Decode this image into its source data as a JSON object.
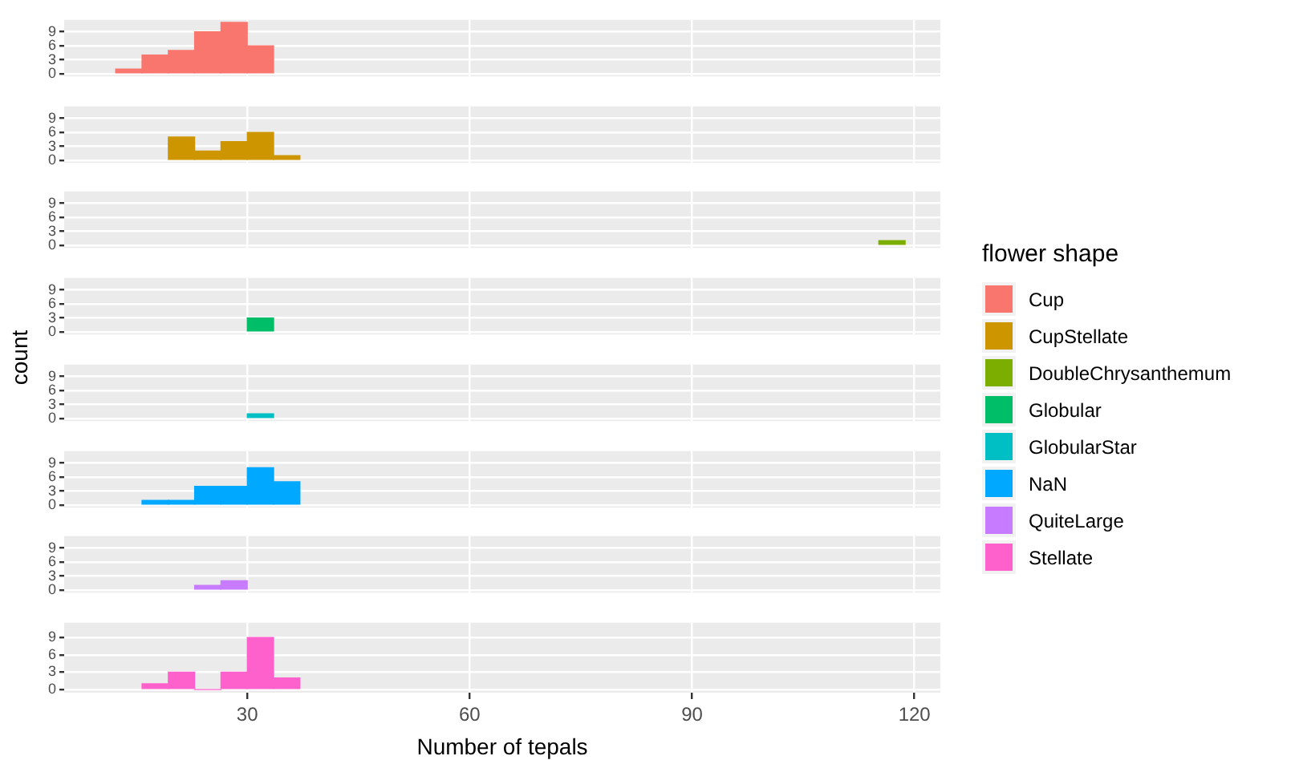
{
  "chart_data": [
    {
      "type": "histogram",
      "legend_title": "flower shape",
      "legend": "right",
      "bins": [
        12.25,
        15.8,
        19.35,
        22.9,
        26.45,
        30,
        33.55
      ],
      "series": [
        {
          "name": "Cup",
          "color": "#f8766d",
          "values": [
            1,
            4,
            5,
            9,
            11,
            6
          ]
        }
      ],
      "xlim": [
        5.3,
        123.5
      ],
      "xticks": [
        30,
        60,
        90,
        120
      ],
      "ylim": [
        -0.55,
        11.55
      ],
      "yticks": [
        0,
        3,
        6,
        9
      ],
      "grid": true,
      "tick_labels": "y"
    },
    {
      "type": "histogram",
      "legend": "right",
      "bins": [
        19.35,
        22.9,
        26.45,
        30,
        33.55,
        37.1
      ],
      "series": [
        {
          "name": "CupStellate",
          "color": "#cd9600",
          "values": [
            5,
            2,
            4,
            6,
            1
          ]
        }
      ],
      "xlim": [
        5.3,
        123.5
      ],
      "xticks": [
        30,
        60,
        90,
        120
      ],
      "ylim": [
        -0.55,
        11.55
      ],
      "yticks": [
        0,
        3,
        6,
        9
      ],
      "grid": true,
      "tick_labels": "y"
    },
    {
      "type": "histogram",
      "legend": "right",
      "bins": [
        115.2,
        118.75
      ],
      "series": [
        {
          "name": "DoubleChrysanthemum",
          "color": "#7cae00",
          "values": [
            1
          ]
        }
      ],
      "xlim": [
        5.3,
        123.5
      ],
      "xticks": [
        30,
        60,
        90,
        120
      ],
      "ylim": [
        -0.55,
        11.55
      ],
      "yticks": [
        0,
        3,
        6,
        9
      ],
      "grid": true,
      "tick_labels": "y"
    },
    {
      "type": "histogram",
      "legend": "right",
      "ylabel": "count",
      "bins": [
        30,
        33.55
      ],
      "series": [
        {
          "name": "Globular",
          "color": "#00be67",
          "values": [
            3
          ]
        }
      ],
      "xlim": [
        5.3,
        123.5
      ],
      "xticks": [
        30,
        60,
        90,
        120
      ],
      "ylim": [
        -0.55,
        11.55
      ],
      "yticks": [
        0,
        3,
        6,
        9
      ],
      "grid": true,
      "tick_labels": "y"
    },
    {
      "type": "histogram",
      "legend": "right",
      "bins": [
        30,
        33.55
      ],
      "series": [
        {
          "name": "GlobularStar",
          "color": "#00bfc4",
          "values": [
            1
          ]
        }
      ],
      "xlim": [
        5.3,
        123.5
      ],
      "xticks": [
        30,
        60,
        90,
        120
      ],
      "ylim": [
        -0.55,
        11.55
      ],
      "yticks": [
        0,
        3,
        6,
        9
      ],
      "grid": true,
      "tick_labels": "y"
    },
    {
      "type": "histogram",
      "legend": "right",
      "bins": [
        15.8,
        19.35,
        22.9,
        26.45,
        30,
        33.55,
        37.1
      ],
      "series": [
        {
          "name": "NaN",
          "color": "#00a9ff",
          "values": [
            1,
            1,
            4,
            4,
            8,
            5
          ]
        }
      ],
      "xlim": [
        5.3,
        123.5
      ],
      "xticks": [
        30,
        60,
        90,
        120
      ],
      "ylim": [
        -0.55,
        11.55
      ],
      "yticks": [
        0,
        3,
        6,
        9
      ],
      "grid": true,
      "tick_labels": "y"
    },
    {
      "type": "histogram",
      "legend": "right",
      "bins": [
        22.9,
        26.45,
        30
      ],
      "series": [
        {
          "name": "QuiteLarge",
          "color": "#c77cff",
          "values": [
            1,
            2
          ]
        }
      ],
      "xlim": [
        5.3,
        123.5
      ],
      "xticks": [
        30,
        60,
        90,
        120
      ],
      "ylim": [
        -0.55,
        11.55
      ],
      "yticks": [
        0,
        3,
        6,
        9
      ],
      "grid": true,
      "tick_labels": "y"
    },
    {
      "type": "histogram",
      "legend": "right",
      "xlabel": "Number of tepals",
      "bins": [
        15.8,
        19.35,
        22.9,
        26.45,
        30,
        33.55,
        37.1
      ],
      "series": [
        {
          "name": "Stellate",
          "color": "#ff61cc",
          "values": [
            1,
            3,
            0,
            3,
            9,
            2
          ]
        }
      ],
      "xlim": [
        5.3,
        123.5
      ],
      "xticks": [
        30,
        60,
        90,
        120
      ],
      "ylim": [
        -0.55,
        11.55
      ],
      "yticks": [
        0,
        3,
        6,
        9
      ],
      "grid": true
    }
  ]
}
